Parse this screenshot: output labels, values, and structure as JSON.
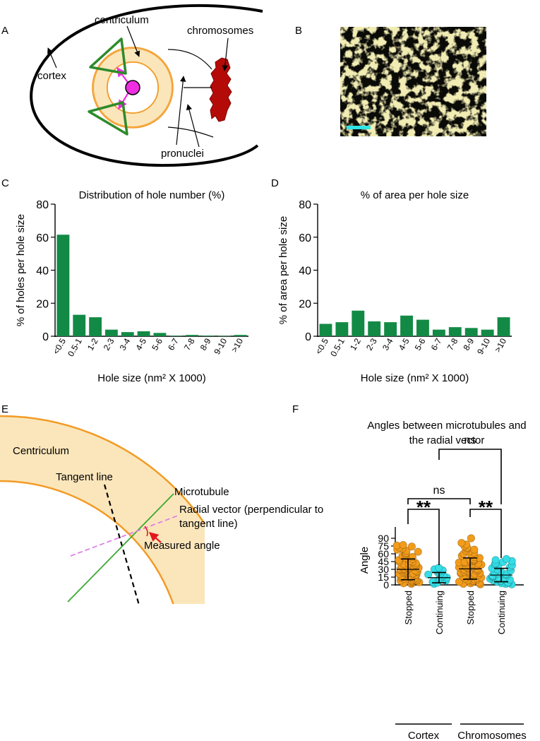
{
  "panels": {
    "A": {
      "letter": "A",
      "labels": {
        "centriculum": "centriculum",
        "chromosomes": "chromosomes",
        "cortex": "cortex",
        "pronuclei": "pronuclei"
      }
    },
    "B": {
      "letter": "B"
    },
    "C": {
      "letter": "C"
    },
    "D": {
      "letter": "D"
    },
    "E": {
      "letter": "E",
      "labels": {
        "centriculum": "Centriculum",
        "tangent": "Tangent line",
        "microtubule": "Microtubule",
        "radial_1": "Radial vector (perpendicular to",
        "radial_2": "tangent line)",
        "measured": "Measured angle"
      }
    },
    "F": {
      "letter": "F"
    }
  },
  "colors": {
    "bar_green": "#128a45",
    "stopped_orange": "#f39c1a",
    "continuing_cyan": "#35dee6",
    "centriculum_fill": "#fbe6bb",
    "centriculum_stroke": "#f29b26",
    "centrosome_magenta": "#ee2ee0",
    "centriole_green": "#2d8b2b",
    "chromosome_red": "#b50b08",
    "em_yellow": "#e1d67a",
    "scalebar_cyan": "#2ee6e6",
    "radial_pink": "#df7ee6",
    "arrow_red": "#e4181c"
  },
  "chart_data": [
    {
      "id": "C",
      "type": "bar",
      "title": "Distribution of hole number (%)",
      "xlabel": "Hole size (nm² X 1000)",
      "ylabel": "% of holes per hole size",
      "ylim": [
        0,
        80
      ],
      "yticks": [
        0,
        20,
        40,
        60,
        80
      ],
      "categories": [
        "<0.5",
        "0.5-1",
        "1-2",
        "2-3",
        "3-4",
        "4-5",
        "5-6",
        "6-7",
        "7-8",
        "8-9",
        "9-10",
        ">10"
      ],
      "values": [
        61.5,
        13,
        11.5,
        4,
        2.5,
        3,
        2,
        0.3,
        0.8,
        0.4,
        0.2,
        0.8
      ]
    },
    {
      "id": "D",
      "type": "bar",
      "title": "% of area per hole size",
      "xlabel": "Hole size (nm² X 1000)",
      "ylabel": "% of area per hole size",
      "ylim": [
        0,
        80
      ],
      "yticks": [
        0,
        20,
        40,
        60,
        80
      ],
      "categories": [
        "<0.5",
        "0.5-1",
        "1-2",
        "2-3",
        "3-4",
        "4-5",
        "5-6",
        "6-7",
        "7-8",
        "8-9",
        "9-10",
        ">10"
      ],
      "values": [
        7.5,
        8.5,
        15.5,
        9,
        8.5,
        12.5,
        10,
        4,
        5.5,
        5,
        4,
        11.5
      ]
    },
    {
      "id": "F",
      "type": "scatter",
      "title_lines": [
        "Angles between microtubules and",
        "the radial vector"
      ],
      "ylabel": "Angle",
      "ylim": [
        0,
        90
      ],
      "yticks": [
        0,
        15,
        30,
        45,
        60,
        75,
        90
      ],
      "groups": [
        {
          "name": "Stopped",
          "parent": "Cortex",
          "color_key": "stopped_orange",
          "mean": 30,
          "sd_low": 10,
          "sd_high": 50,
          "points": [
            2,
            3,
            4,
            5,
            6,
            7,
            8,
            8,
            9,
            10,
            11,
            12,
            13,
            14,
            15,
            16,
            17,
            18,
            19,
            20,
            21,
            22,
            22,
            23,
            24,
            25,
            25,
            26,
            27,
            28,
            28,
            29,
            30,
            30,
            31,
            32,
            33,
            34,
            35,
            36,
            37,
            38,
            39,
            40,
            41,
            42,
            44,
            45,
            46,
            48,
            50,
            52,
            54,
            56,
            58,
            60,
            62,
            64,
            66,
            68,
            70,
            72,
            74,
            76,
            77
          ]
        },
        {
          "name": "Continuing",
          "parent": "Cortex",
          "color_key": "continuing_cyan",
          "mean": 14,
          "sd_low": 4,
          "sd_high": 24,
          "points": [
            2,
            4,
            6,
            8,
            10,
            12,
            14,
            16,
            18,
            20,
            22,
            24,
            26,
            28,
            30,
            33
          ]
        },
        {
          "name": "Stopped",
          "parent": "Chromosomes",
          "color_key": "stopped_orange",
          "mean": 31,
          "sd_low": 11,
          "sd_high": 52,
          "points": [
            1,
            2,
            3,
            4,
            5,
            6,
            7,
            8,
            9,
            10,
            11,
            12,
            13,
            14,
            15,
            16,
            17,
            18,
            19,
            20,
            21,
            22,
            23,
            24,
            25,
            26,
            27,
            28,
            29,
            30,
            31,
            32,
            33,
            34,
            35,
            36,
            37,
            38,
            39,
            40,
            41,
            42,
            43,
            44,
            45,
            46,
            47,
            48,
            49,
            50,
            52,
            54,
            56,
            58,
            60,
            62,
            64,
            66,
            68,
            70,
            72,
            75,
            78,
            81,
            90
          ]
        },
        {
          "name": "Continuing",
          "parent": "Chromosomes",
          "color_key": "continuing_cyan",
          "mean": 19,
          "sd_low": 6,
          "sd_high": 32,
          "points": [
            1,
            2,
            3,
            4,
            5,
            6,
            7,
            8,
            9,
            10,
            11,
            12,
            13,
            14,
            15,
            16,
            17,
            18,
            19,
            20,
            21,
            22,
            24,
            26,
            28,
            30,
            32,
            34,
            36,
            38,
            40,
            42,
            44,
            46,
            48,
            50
          ]
        }
      ],
      "group_labels": [
        "Cortex",
        "Chromosomes"
      ],
      "comparisons": [
        {
          "label": "**",
          "from": 0,
          "to": 1
        },
        {
          "label": "**",
          "from": 2,
          "to": 3
        },
        {
          "label": "ns",
          "from": 0,
          "to": 2
        },
        {
          "label": "ns",
          "from": 1,
          "to": 3
        }
      ]
    }
  ]
}
